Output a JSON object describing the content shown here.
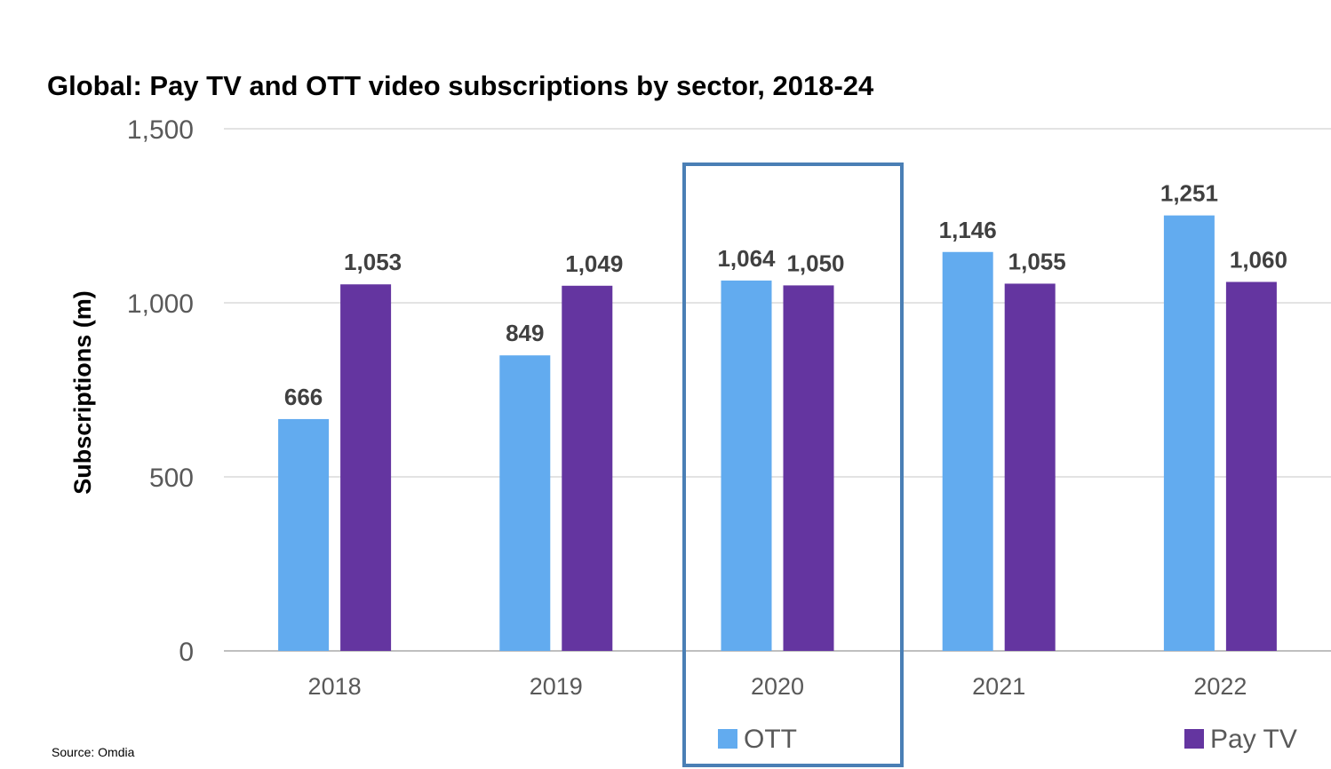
{
  "chart_data": {
    "type": "bar",
    "title": "Global: Pay TV and OTT video subscriptions by sector, 2018-24",
    "xlabel": "",
    "ylabel": "Subscriptions (m)",
    "ylim": [
      0,
      1500
    ],
    "yticks": [
      0,
      500,
      1000,
      1500
    ],
    "ytick_labels": [
      "0",
      "500",
      "1,000",
      "1,500"
    ],
    "grid": true,
    "categories": [
      "2018",
      "2019",
      "2020",
      "2021",
      "2022"
    ],
    "series": [
      {
        "name": "OTT",
        "color": "#62ABEF",
        "values": [
          666,
          849,
          1064,
          1146,
          1251
        ],
        "labels": [
          "666",
          "849",
          "1,064",
          "1,146",
          "1,251"
        ]
      },
      {
        "name": "Pay TV",
        "color": "#6435A0",
        "values": [
          1053,
          1049,
          1050,
          1055,
          1060
        ],
        "labels": [
          "1,053",
          "1,049",
          "1,050",
          "1,055",
          "1,060"
        ]
      }
    ],
    "legend_position": "bottom",
    "highlight": {
      "category": "2020",
      "color": "#4A7FB5"
    }
  },
  "footer": {
    "source": "Source: Omdia"
  }
}
